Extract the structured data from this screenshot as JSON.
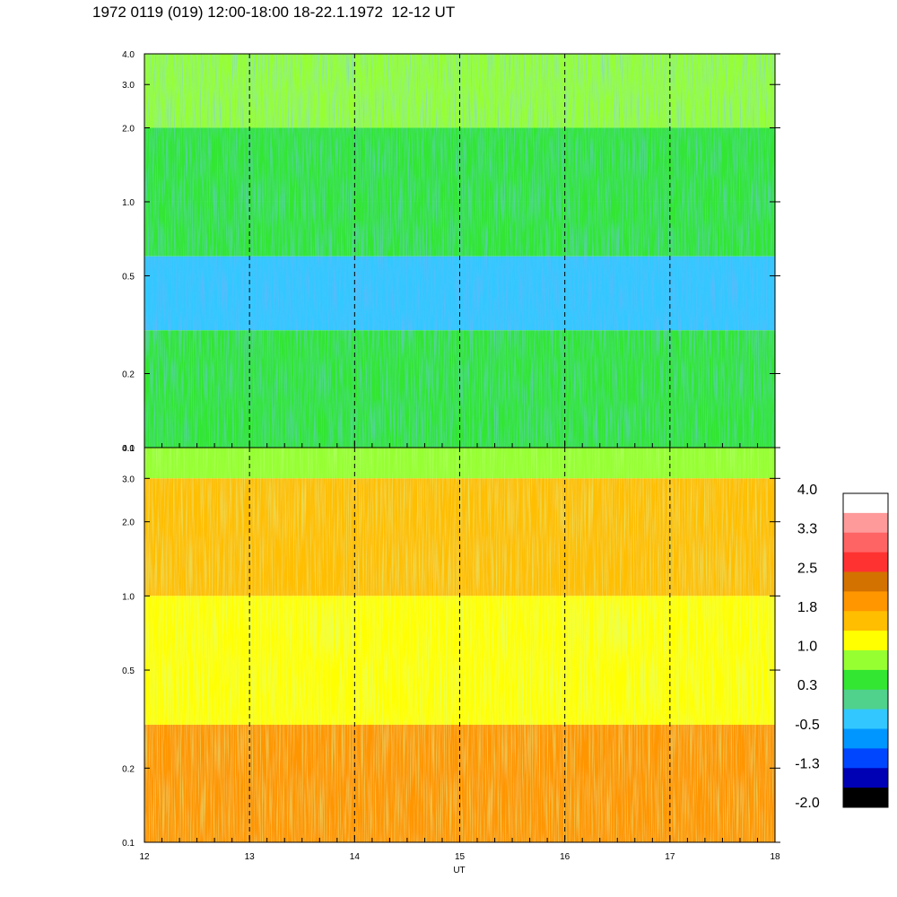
{
  "title": "1972 0119 (019) 12:00-18:00 18-22.1.1972  12-12 UT",
  "chart_data": [
    {
      "type": "heatmap",
      "panel": "top",
      "x": {
        "label": "",
        "range": [
          12,
          18
        ],
        "ticks": [
          "12",
          "13",
          "14",
          "15",
          "16",
          "17",
          "18"
        ]
      },
      "y": {
        "scale": "log",
        "range": [
          0.1,
          4.0
        ],
        "ticks": [
          0.1,
          0.2,
          0.5,
          1.0,
          2.0,
          3.0,
          4.0
        ],
        "tick_labels": [
          "0.1",
          "0.2",
          "0.5",
          "1.0",
          "2.0",
          "3.0",
          "4.0"
        ]
      },
      "vertical_markers": [
        13,
        14,
        15,
        16,
        17
      ],
      "value_profile": [
        {
          "y_top": 4.0,
          "y_bottom": 2.0,
          "level": 0.8
        },
        {
          "y_top": 2.0,
          "y_bottom": 1.0,
          "level": 0.5
        },
        {
          "y_top": 1.0,
          "y_bottom": 0.6,
          "level": 0.3
        },
        {
          "y_top": 0.6,
          "y_bottom": 0.3,
          "level": -0.3
        },
        {
          "y_top": 0.3,
          "y_bottom": 0.1,
          "level": 0.5
        }
      ]
    },
    {
      "type": "heatmap",
      "panel": "bottom",
      "x": {
        "label": "UT",
        "range": [
          12,
          18
        ],
        "ticks": [
          "12",
          "13",
          "14",
          "15",
          "16",
          "17",
          "18"
        ]
      },
      "y": {
        "scale": "log",
        "range": [
          0.1,
          4.0
        ],
        "ticks": [
          0.1,
          0.2,
          0.5,
          1.0,
          2.0,
          3.0,
          4.0
        ],
        "tick_labels": [
          "0.1",
          "0.2",
          "0.5",
          "1.0",
          "2.0",
          "3.0",
          "4.0"
        ]
      },
      "vertical_markers": [
        13,
        14,
        15,
        16,
        17
      ],
      "value_profile": [
        {
          "y_top": 4.0,
          "y_bottom": 3.0,
          "level": 0.8
        },
        {
          "y_top": 3.0,
          "y_bottom": 1.0,
          "level": 1.5
        },
        {
          "y_top": 1.0,
          "y_bottom": 0.3,
          "level": 1.1
        },
        {
          "y_top": 0.3,
          "y_bottom": 0.1,
          "level": 1.8
        }
      ]
    }
  ],
  "colorbar": {
    "labels": [
      "4.0",
      "3.3",
      "2.5",
      "1.8",
      "1.0",
      "0.3",
      "-0.5",
      "-1.3",
      "-2.0"
    ],
    "colors": [
      "#ffffff",
      "#ff9a9a",
      "#ff6464",
      "#ff3232",
      "#d47200",
      "#ff9600",
      "#ffbe00",
      "#ffff00",
      "#96ff32",
      "#32e632",
      "#50d28c",
      "#32c8ff",
      "#0096ff",
      "#0046ff",
      "#0000b4",
      "#000000"
    ]
  }
}
